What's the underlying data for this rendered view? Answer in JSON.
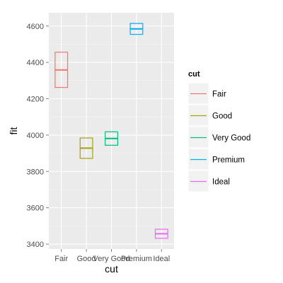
{
  "chart_data": {
    "type": "crossbar",
    "xlabel": "cut",
    "ylabel": "fit",
    "categories": [
      "Fair",
      "Good",
      "Very Good",
      "Premium",
      "Ideal"
    ],
    "series": [
      {
        "name": "Fair",
        "fit": 4358,
        "lower": 4262,
        "upper": 4456,
        "color": "#F8766D"
      },
      {
        "name": "Good",
        "fit": 3928,
        "lower": 3872,
        "upper": 3984,
        "color": "#A3A500"
      },
      {
        "name": "Very Good",
        "fit": 3981,
        "lower": 3944,
        "upper": 4018,
        "color": "#00BF7D"
      },
      {
        "name": "Premium",
        "fit": 4584,
        "lower": 4554,
        "upper": 4614,
        "color": "#00B0F6"
      },
      {
        "name": "Ideal",
        "fit": 3457,
        "lower": 3432,
        "upper": 3482,
        "color": "#E76BF3"
      }
    ],
    "yticks": [
      3400,
      3600,
      3800,
      4000,
      4200,
      4400,
      4600
    ],
    "ylim": [
      3373,
      4673
    ],
    "grid": true,
    "legend": {
      "title": "cut",
      "placement": "right"
    },
    "panel_background": "#EBEBEB",
    "grid_color": "#FFFFFF"
  }
}
